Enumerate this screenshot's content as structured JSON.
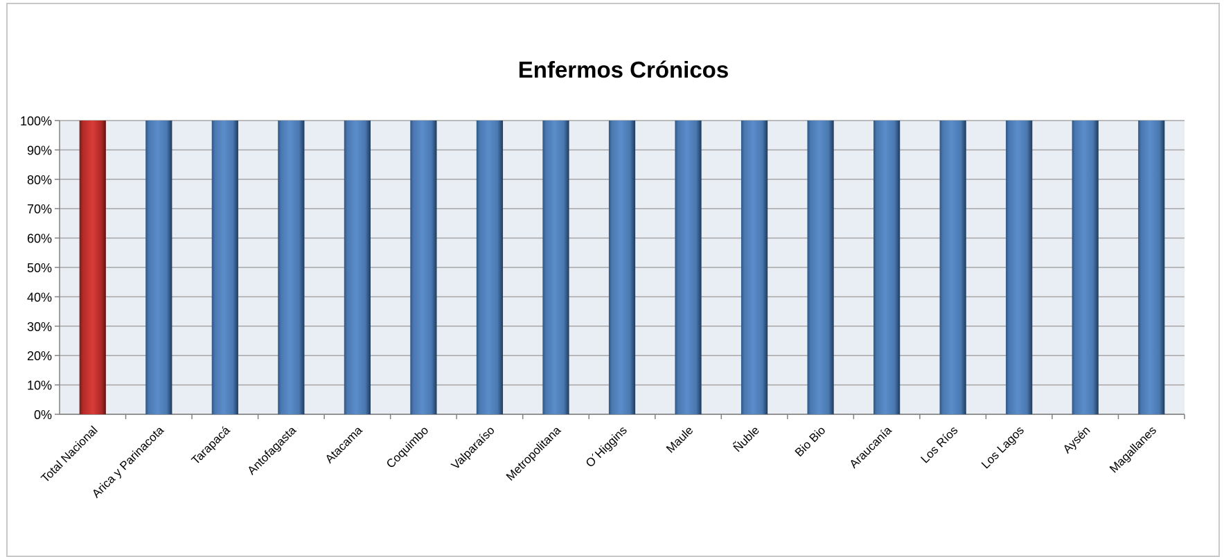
{
  "chart_data": {
    "type": "bar",
    "title": "Enfermos Crónicos",
    "xlabel": "",
    "ylabel": "",
    "ylim": [
      0,
      100
    ],
    "yticks": [
      "0%",
      "10%",
      "20%",
      "30%",
      "40%",
      "50%",
      "60%",
      "70%",
      "80%",
      "90%",
      "100%"
    ],
    "grid": true,
    "legend": "none",
    "categories": [
      "Total Nacional",
      "Arica y Parinacota",
      "Tarapacá",
      "Antofagasta",
      "Atacama",
      "Coquimbo",
      "Valparaíso",
      "Metropolitana",
      "O´Higgins",
      "Maule",
      "Ñuble",
      "Bio Bio",
      "Araucanía",
      "Los Ríos",
      "Los Lagos",
      "Aysén",
      "Magallanes"
    ],
    "values": [
      100,
      100,
      100,
      100,
      100,
      100,
      100,
      100,
      100,
      100,
      100,
      100,
      100,
      100,
      100,
      100,
      100
    ],
    "colors": {
      "highlight": "#c0302e",
      "bar": "#4f81bd",
      "plot_background": "#e9edf4",
      "gridline": "#a6a6a6"
    },
    "highlight_index": 0
  }
}
